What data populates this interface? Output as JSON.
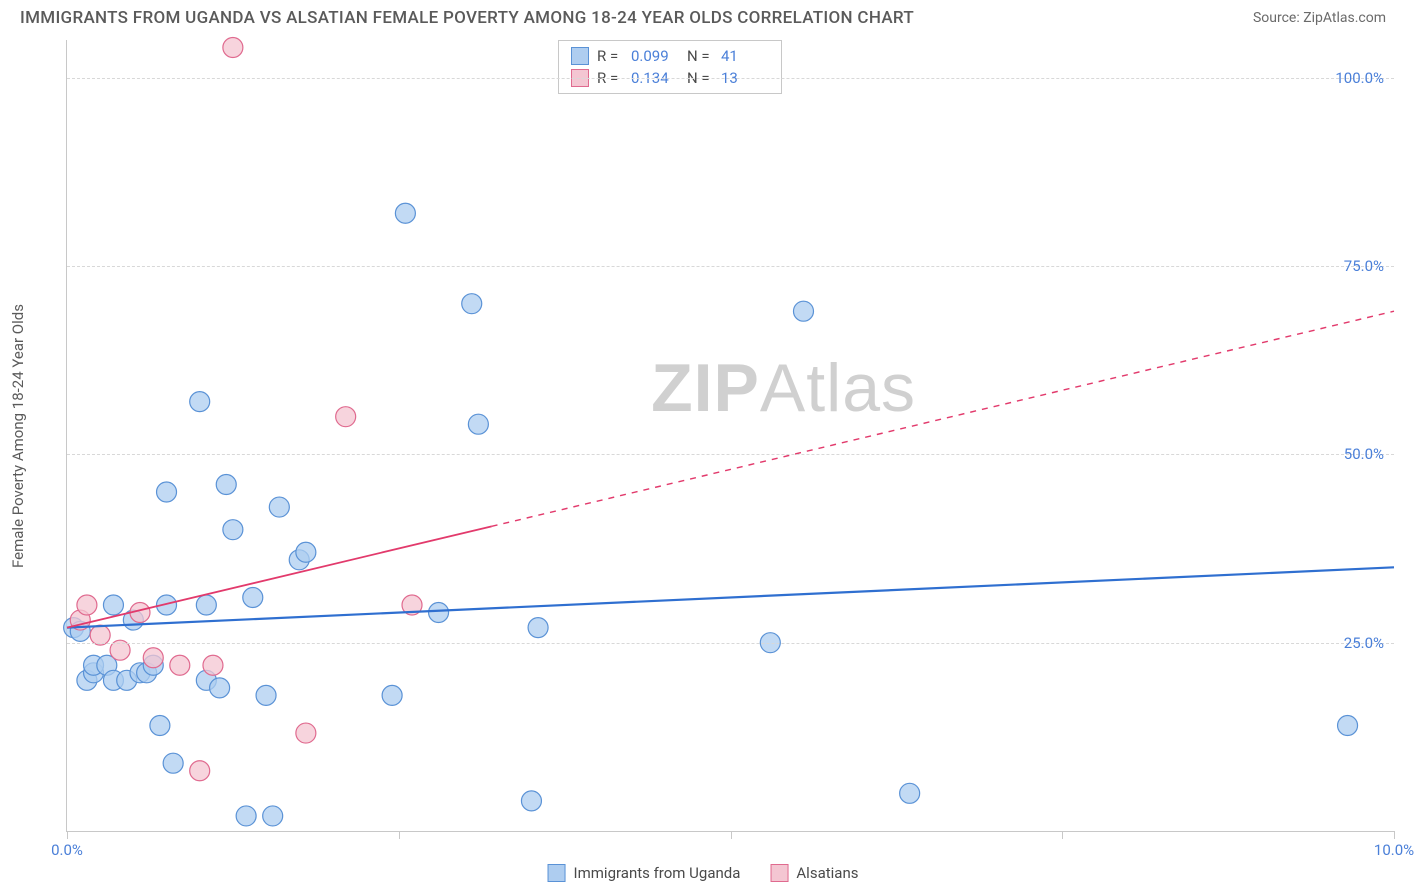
{
  "header": {
    "title": "IMMIGRANTS FROM UGANDA VS ALSATIAN FEMALE POVERTY AMONG 18-24 YEAR OLDS CORRELATION CHART",
    "source": "Source: ZipAtlas.com"
  },
  "watermark": {
    "zip": "ZIP",
    "atlas": "Atlas"
  },
  "chart": {
    "type": "scatter",
    "y_axis_label": "Female Poverty Among 18-24 Year Olds",
    "xlim": [
      0,
      10
    ],
    "ylim": [
      0,
      105
    ],
    "x_ticks": [
      0,
      2.5,
      5,
      7.5,
      10
    ],
    "x_tick_labels": [
      "0.0%",
      "",
      "",
      "",
      "10.0%"
    ],
    "y_ticks": [
      25,
      50,
      75,
      100
    ],
    "y_tick_labels": [
      "25.0%",
      "50.0%",
      "75.0%",
      "100.0%"
    ],
    "gridline_color": "#d8d8d8",
    "axis_color": "#c8c8c8",
    "background_color": "#ffffff",
    "tick_font_color": "#4a7fd8",
    "label_font_color": "#5a5a5a",
    "label_fontsize": 15,
    "tick_fontsize": 15,
    "marker_radius": 10,
    "marker_stroke_width": 1.2,
    "series": [
      {
        "name": "Immigrants from Uganda",
        "color_fill": "#aecdf0",
        "color_stroke": "#5a92d6",
        "R": "0.099",
        "N": "41",
        "trend": {
          "x1": 0,
          "y1": 27,
          "x2": 10,
          "y2": 35,
          "solid_until_x": 10,
          "stroke": "#2f6fd0",
          "width": 2.2
        },
        "points": [
          [
            0.05,
            27
          ],
          [
            0.1,
            26.5
          ],
          [
            0.15,
            20
          ],
          [
            0.2,
            21
          ],
          [
            0.2,
            22
          ],
          [
            0.3,
            22
          ],
          [
            0.35,
            30
          ],
          [
            0.35,
            20
          ],
          [
            0.45,
            20
          ],
          [
            0.5,
            28
          ],
          [
            0.55,
            21
          ],
          [
            0.6,
            21
          ],
          [
            0.65,
            22
          ],
          [
            0.7,
            14
          ],
          [
            0.75,
            45
          ],
          [
            0.75,
            30
          ],
          [
            0.8,
            9
          ],
          [
            1.0,
            57
          ],
          [
            1.05,
            30
          ],
          [
            1.05,
            20
          ],
          [
            1.15,
            19
          ],
          [
            1.2,
            46
          ],
          [
            1.25,
            40
          ],
          [
            1.35,
            2
          ],
          [
            1.4,
            31
          ],
          [
            1.5,
            18
          ],
          [
            1.55,
            2
          ],
          [
            1.6,
            43
          ],
          [
            1.75,
            36
          ],
          [
            1.8,
            37
          ],
          [
            2.45,
            18
          ],
          [
            2.55,
            82
          ],
          [
            2.8,
            29
          ],
          [
            3.05,
            70
          ],
          [
            3.1,
            54
          ],
          [
            3.5,
            4
          ],
          [
            3.55,
            27
          ],
          [
            5.3,
            25
          ],
          [
            5.55,
            69
          ],
          [
            6.35,
            5
          ],
          [
            9.65,
            14
          ]
        ]
      },
      {
        "name": "Alsatians",
        "color_fill": "#f4c6d2",
        "color_stroke": "#e06a8f",
        "R": "0.134",
        "N": "13",
        "trend": {
          "x1": 0,
          "y1": 27,
          "x2": 10,
          "y2": 69,
          "solid_until_x": 3.2,
          "stroke": "#e23a6c",
          "width": 1.8
        },
        "points": [
          [
            0.1,
            28
          ],
          [
            0.15,
            30
          ],
          [
            0.25,
            26
          ],
          [
            0.4,
            24
          ],
          [
            0.55,
            29
          ],
          [
            0.65,
            23
          ],
          [
            0.85,
            22
          ],
          [
            1.0,
            8
          ],
          [
            1.1,
            22
          ],
          [
            1.25,
            104
          ],
          [
            1.8,
            13
          ],
          [
            2.1,
            55
          ],
          [
            2.6,
            30
          ]
        ]
      }
    ]
  },
  "stat_legend": {
    "rows": [
      {
        "swatch_fill": "#aecdf0",
        "swatch_stroke": "#5a92d6",
        "r_label": "R =",
        "r_value": "0.099",
        "n_label": "N =",
        "n_value": "41"
      },
      {
        "swatch_fill": "#f4c6d2",
        "swatch_stroke": "#e06a8f",
        "r_label": "R =",
        "r_value": "0.134",
        "n_label": "N =",
        "n_value": "13"
      }
    ]
  },
  "series_legend": {
    "items": [
      {
        "swatch_fill": "#aecdf0",
        "swatch_stroke": "#5a92d6",
        "label": "Immigrants from Uganda"
      },
      {
        "swatch_fill": "#f4c6d2",
        "swatch_stroke": "#e06a8f",
        "label": "Alsatians"
      }
    ]
  }
}
